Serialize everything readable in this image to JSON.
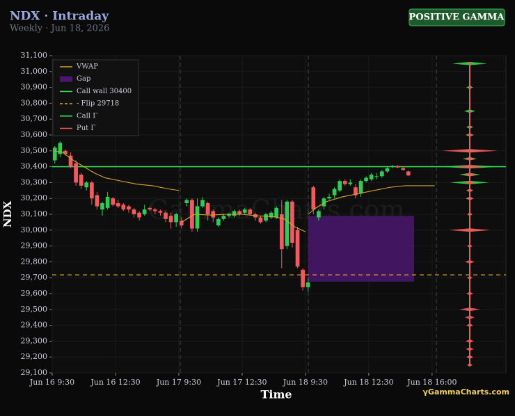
{
  "chart_data": {
    "type": "candlestick",
    "title": "NDX · Intraday",
    "subtitle": "Weekly · Jun 18, 2026",
    "badge": "POSITIVE GAMMA",
    "y_label": "NDX",
    "x_label": "Time",
    "watermark": "GammaCharts.com",
    "footer": "γGammaCharts.com",
    "xlim": [
      0,
      86
    ],
    "xticks": [
      {
        "value": 0,
        "label": "Jun 16 9:30"
      },
      {
        "value": 12,
        "label": "Jun 16 12:30"
      },
      {
        "value": 24,
        "label": "Jun 17 9:30"
      },
      {
        "value": 36,
        "label": "Jun 17 12:30"
      },
      {
        "value": 48,
        "label": "Jun 18 9:30"
      },
      {
        "value": 60,
        "label": "Jun 18 12:30"
      },
      {
        "value": 72,
        "label": "Jun 18 16:00"
      }
    ],
    "ylim": [
      29100,
      31100
    ],
    "yticks": [
      {
        "value": 29100,
        "label": "29,100"
      },
      {
        "value": 29200,
        "label": "29,200"
      },
      {
        "value": 29300,
        "label": "29,300"
      },
      {
        "value": 29400,
        "label": "29,400"
      },
      {
        "value": 29500,
        "label": "29,500"
      },
      {
        "value": 29600,
        "label": "29,600"
      },
      {
        "value": 29700,
        "label": "29,700"
      },
      {
        "value": 29800,
        "label": "29,800"
      },
      {
        "value": 29900,
        "label": "29,900"
      },
      {
        "value": 30000,
        "label": "30,000"
      },
      {
        "value": 30100,
        "label": "30,100"
      },
      {
        "value": 30200,
        "label": "30,200"
      },
      {
        "value": 30300,
        "label": "30,300"
      },
      {
        "value": 30400,
        "label": "30,400"
      },
      {
        "value": 30500,
        "label": "30,500"
      },
      {
        "value": 30600,
        "label": "30,600"
      },
      {
        "value": 30700,
        "label": "30,700"
      },
      {
        "value": 30800,
        "label": "30,800"
      },
      {
        "value": 30900,
        "label": "30,900"
      },
      {
        "value": 31000,
        "label": "31,000"
      },
      {
        "value": 31100,
        "label": "31,100"
      }
    ],
    "grid": true,
    "up_color": "#2ecc55",
    "down_color": "#f25a5e",
    "candles": {
      "x": [
        0.5,
        1.5,
        2.5,
        3.5,
        4.5,
        5.5,
        6.5,
        7.5,
        8.5,
        9.5,
        10.5,
        11.5,
        12.5,
        13.5,
        14.5,
        15.5,
        16.5,
        17.5,
        18.5,
        19.5,
        20.5,
        21.5,
        22.5,
        23.5,
        24.5,
        25.5,
        26.5,
        27.5,
        28.5,
        29.5,
        30.5,
        31.5,
        32.5,
        33.5,
        34.5,
        35.5,
        36.5,
        37.5,
        38.5,
        39.5,
        40.5,
        41.5,
        42.5,
        43.5,
        44.5,
        45.5,
        46.5,
        47.5,
        48.5,
        49.5,
        50.5,
        51.5,
        52.5,
        53.5,
        54.5,
        55.5,
        56.5,
        57.5,
        58.5,
        59.5,
        60.5,
        61.5,
        62.5,
        63.5,
        64.5,
        65.5,
        66.5,
        67.5
      ],
      "open": [
        30440,
        30480,
        30500,
        30470,
        30420,
        30350,
        30270,
        30300,
        30220,
        30130,
        30140,
        30200,
        30170,
        30160,
        30150,
        30130,
        30110,
        30100,
        30140,
        30130,
        30120,
        30110,
        30090,
        30050,
        30060,
        30170,
        30190,
        30010,
        30150,
        30170,
        30120,
        30030,
        30070,
        30090,
        30090,
        30120,
        30110,
        30130,
        30100,
        30080,
        30060,
        30080,
        30080,
        30100,
        29900,
        30180,
        30000,
        29750,
        29640,
        30270,
        30080,
        30150,
        30200,
        30220,
        30250,
        30310,
        30290,
        30270,
        30230,
        30310,
        30320,
        30340,
        30340,
        30370,
        30400,
        30405,
        30390,
        30370
      ],
      "high": [
        30530,
        30560,
        30510,
        30490,
        30440,
        30360,
        30310,
        30310,
        30240,
        30180,
        30240,
        30210,
        30190,
        30170,
        30160,
        30140,
        30120,
        30160,
        30150,
        30140,
        30130,
        30120,
        30110,
        30110,
        30080,
        30200,
        30200,
        30200,
        30210,
        30180,
        30130,
        30080,
        30100,
        30110,
        30130,
        30130,
        30140,
        30140,
        30110,
        30090,
        30110,
        30120,
        30150,
        30190,
        30190,
        30190,
        30020,
        29760,
        29700,
        30280,
        30130,
        30210,
        30230,
        30270,
        30320,
        30320,
        30320,
        30290,
        30320,
        30340,
        30360,
        30360,
        30380,
        30400,
        30410,
        30410,
        30400,
        30375
      ],
      "low": [
        30420,
        30460,
        30470,
        30390,
        30280,
        30260,
        30250,
        30160,
        30130,
        30090,
        30130,
        30150,
        30140,
        30120,
        30110,
        30080,
        30060,
        30090,
        30120,
        30100,
        30090,
        30050,
        30010,
        30020,
        30010,
        30150,
        29990,
        29990,
        30140,
        30060,
        30050,
        30020,
        30060,
        30080,
        30080,
        30090,
        30100,
        30090,
        30060,
        30040,
        30050,
        30070,
        30070,
        29760,
        29880,
        29890,
        29760,
        29620,
        29610,
        30100,
        30060,
        30130,
        30190,
        30200,
        30240,
        30280,
        30280,
        30200,
        30210,
        30300,
        30310,
        30320,
        30330,
        30360,
        30390,
        30390,
        30375,
        30340
      ],
      "close": [
        30520,
        30550,
        30480,
        30400,
        30300,
        30280,
        30300,
        30200,
        30150,
        30170,
        30210,
        30160,
        30150,
        30130,
        30130,
        30100,
        30080,
        30130,
        30130,
        30120,
        30110,
        30070,
        30050,
        30100,
        30030,
        30190,
        30010,
        30150,
        30190,
        30100,
        30080,
        30070,
        30090,
        30100,
        30120,
        30100,
        30130,
        30100,
        30080,
        30050,
        30100,
        30110,
        30140,
        29880,
        30180,
        29920,
        29770,
        29640,
        29670,
        30130,
        30120,
        30200,
        30210,
        30260,
        30310,
        30290,
        30300,
        30220,
        30310,
        30330,
        30350,
        30340,
        30370,
        30390,
        30405,
        30395,
        30380,
        30345
      ]
    },
    "vwap": {
      "name": "VWAP",
      "color": "#d9a62e",
      "x": [
        0.5,
        2,
        4,
        6,
        8,
        10,
        13,
        16,
        19,
        22,
        24,
        24.2,
        24.5,
        27,
        30,
        33,
        36,
        39,
        42,
        44,
        46,
        48,
        48.2,
        48.5,
        50,
        52,
        55,
        58,
        61,
        64,
        67,
        72.5
      ],
      "values": [
        30500,
        30490,
        30440,
        30400,
        30360,
        30330,
        30310,
        30290,
        30280,
        30260,
        30250,
        null,
        30050,
        30100,
        30095,
        30100,
        30100,
        30090,
        30085,
        30070,
        30020,
        29990,
        null,
        30100,
        30140,
        30180,
        30210,
        30230,
        30250,
        30270,
        30280,
        30280
      ]
    },
    "gap": {
      "name": "Gap",
      "color": "#4b1670",
      "x": [
        48.5,
        68.6
      ],
      "range": [
        29675,
        30090
      ]
    },
    "call_wall": {
      "name": "Call wall 30400",
      "color": "#35d84f",
      "value": 30400
    },
    "flip": {
      "name": "- Flip 29718",
      "color": "#d9a62e",
      "value": 29718
    },
    "gamma_profile": {
      "strikes": [
        31050,
        30900,
        30750,
        30650,
        30600,
        30500,
        30450,
        30400,
        30350,
        30300,
        30250,
        30200,
        30100,
        30000,
        29900,
        29800,
        29700,
        29600,
        29500,
        29450,
        29400,
        29300,
        29250,
        29200,
        29150
      ],
      "xlim": [
        0,
        50
      ],
      "series": [
        {
          "name": "Call Γ",
          "color": "#35d84f",
          "values": [
            25,
            5,
            8,
            5,
            6,
            20,
            10,
            45,
            15,
            28,
            5,
            5,
            3,
            10,
            2,
            2,
            2,
            2,
            3,
            1,
            1,
            1,
            1,
            4,
            2
          ]
        },
        {
          "name": "Put Γ",
          "color": "#f25a5e",
          "values": [
            3,
            3,
            2,
            3,
            5,
            40,
            8,
            20,
            10,
            8,
            5,
            6,
            4,
            30,
            4,
            7,
            4,
            5,
            15,
            7,
            5,
            6,
            6,
            5,
            4
          ]
        }
      ]
    }
  }
}
